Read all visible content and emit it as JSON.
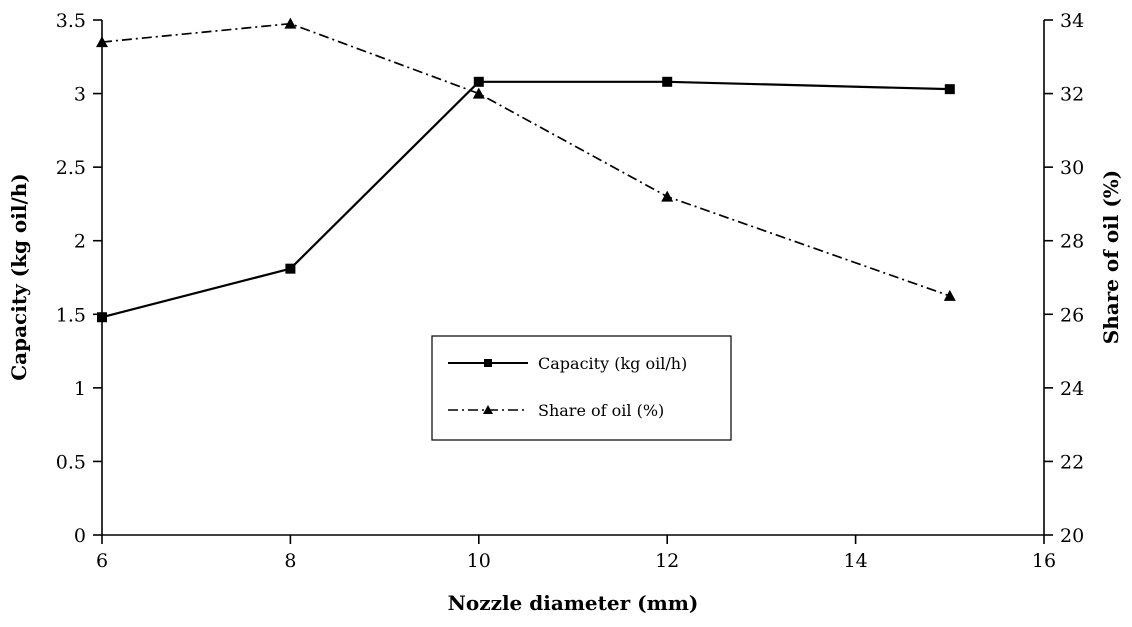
{
  "chart_data": {
    "type": "line",
    "xlabel": "Nozzle diameter (mm)",
    "ylabel": "Capacity (kg oil/h)",
    "y2label": "Share of oil (%)",
    "xlim": [
      6,
      16
    ],
    "ylim": [
      0,
      3.5
    ],
    "y2lim": [
      20,
      34
    ],
    "xticks": [
      6,
      8,
      10,
      12,
      14,
      16
    ],
    "yticks": [
      0,
      0.5,
      1,
      1.5,
      2,
      2.5,
      3,
      3.5
    ],
    "y2ticks": [
      20,
      22,
      24,
      26,
      28,
      30,
      32,
      34
    ],
    "grid": false,
    "legend_placement": "center",
    "series": [
      {
        "name": "Capacity (kg oil/h)",
        "axis": "left",
        "marker": "square",
        "line_style": "solid",
        "x": [
          6,
          8,
          10,
          12,
          15
        ],
        "values": [
          1.48,
          1.81,
          3.08,
          3.08,
          3.03
        ]
      },
      {
        "name": "Share of oil (%)",
        "axis": "right",
        "marker": "triangle",
        "line_style": "dash-dot",
        "x": [
          6,
          8,
          10,
          12,
          15
        ],
        "values": [
          33.4,
          33.9,
          32.0,
          29.2,
          26.5
        ]
      }
    ]
  }
}
